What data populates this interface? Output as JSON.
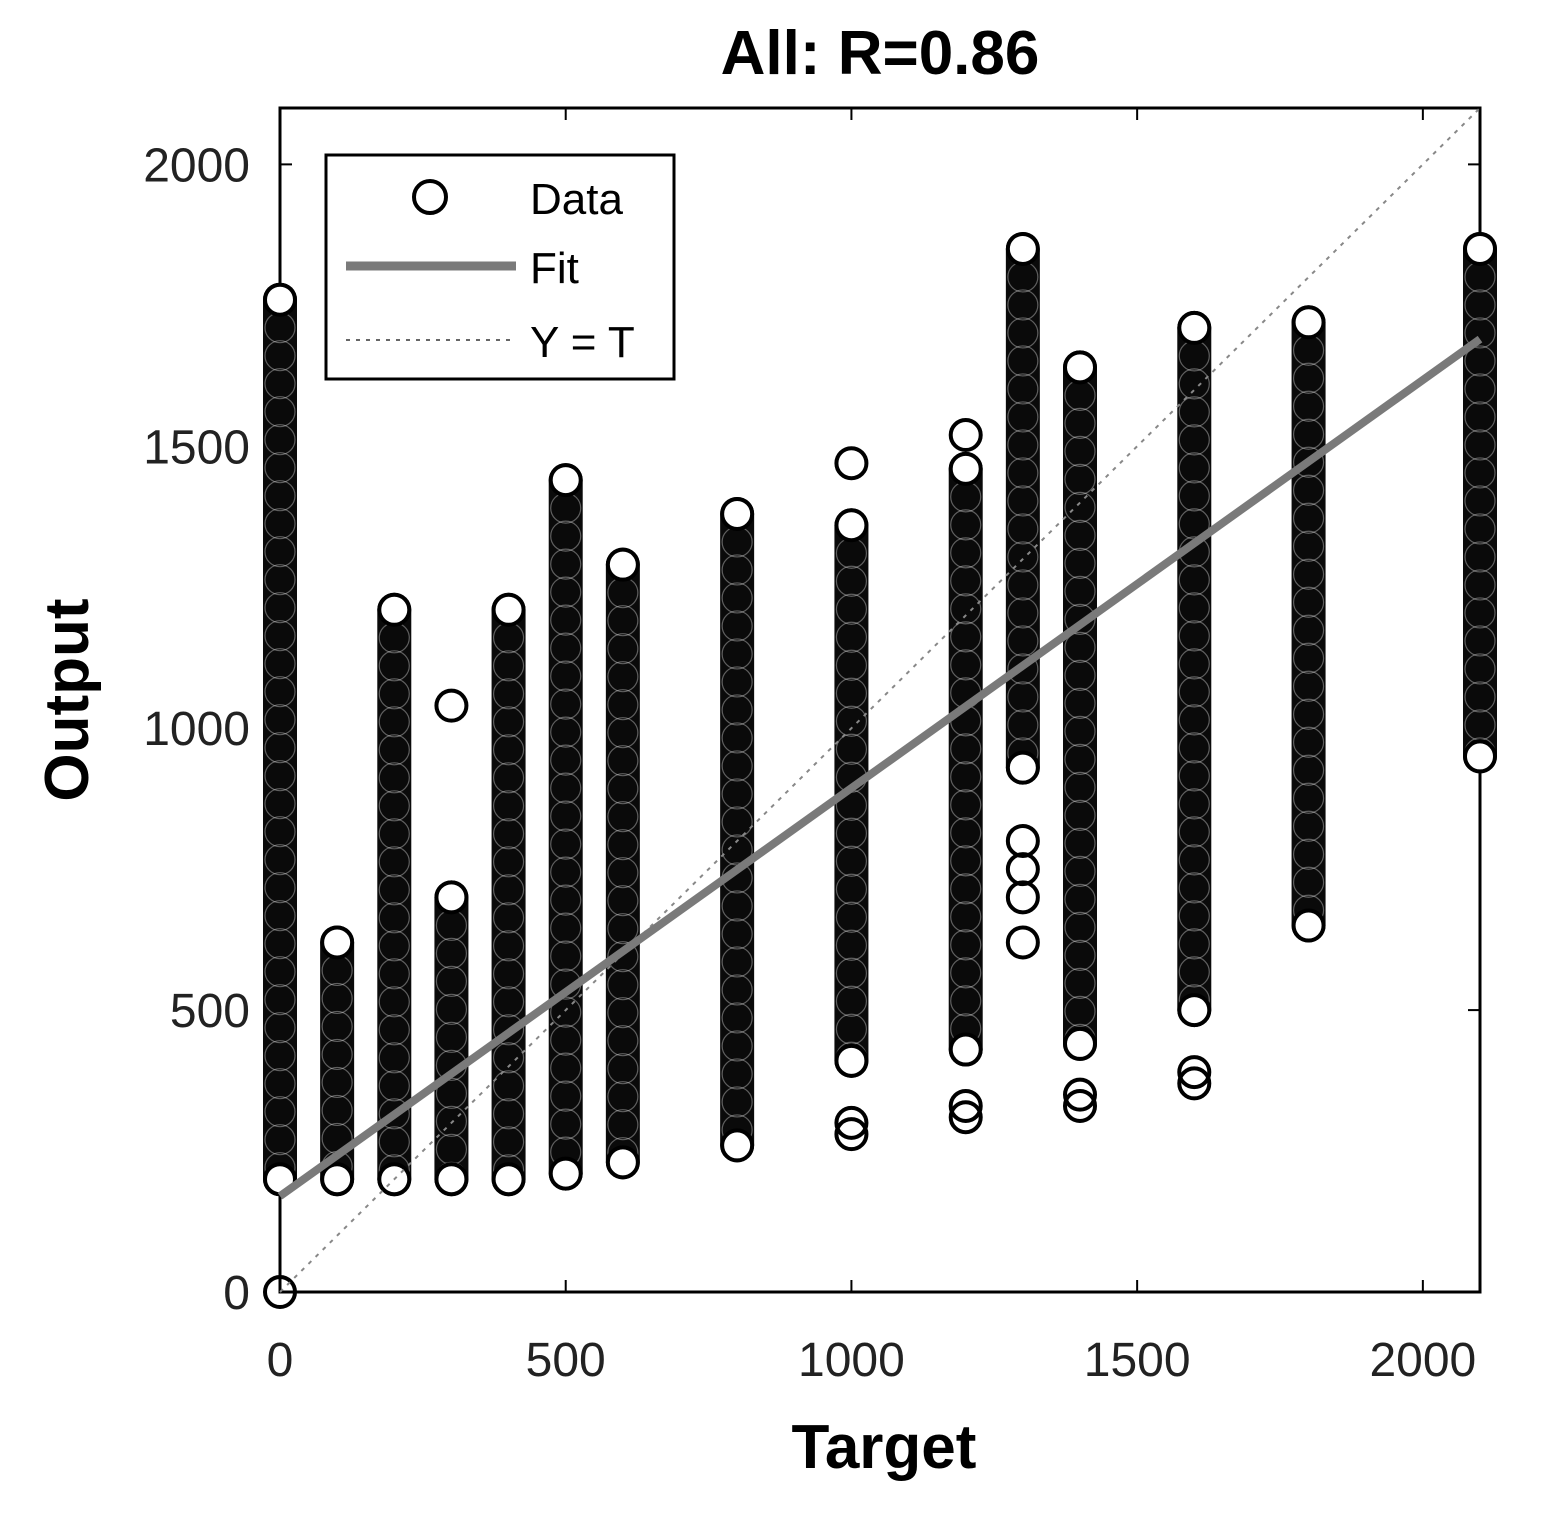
{
  "chart_data": {
    "type": "scatter",
    "title": "All: R=0.86",
    "xlabel": "Target",
    "ylabel": "Output",
    "xlim": [
      0,
      2100
    ],
    "ylim": [
      0,
      2100
    ],
    "xticks": [
      0,
      500,
      1000,
      1500,
      2000
    ],
    "yticks": [
      0,
      500,
      1000,
      1500,
      2000
    ],
    "grid": false,
    "legend_position": "top-left",
    "legend": [
      {
        "label": "Data",
        "style": "circle-marker"
      },
      {
        "label": "Fit",
        "style": "solid-line",
        "color": "#7a7a7a"
      },
      {
        "label": "Y = T",
        "style": "dotted-line",
        "color": "#7a7a7a"
      }
    ],
    "fit_line": {
      "x": [
        0,
        2100
      ],
      "y": [
        170,
        1690
      ]
    },
    "identity_line": {
      "x": [
        0,
        2100
      ],
      "y": [
        0,
        2100
      ]
    },
    "series": [
      {
        "name": "Data",
        "columns": [
          {
            "x": 0,
            "min": 200,
            "max": 1760
          },
          {
            "x": 100,
            "min": 200,
            "max": 620
          },
          {
            "x": 200,
            "min": 200,
            "max": 1210
          },
          {
            "x": 300,
            "min": 200,
            "max": 700
          },
          {
            "x": 400,
            "min": 200,
            "max": 1210
          },
          {
            "x": 500,
            "min": 210,
            "max": 1440
          },
          {
            "x": 600,
            "min": 230,
            "max": 1290
          },
          {
            "x": 800,
            "min": 260,
            "max": 1380
          },
          {
            "x": 1000,
            "min": 410,
            "max": 1360
          },
          {
            "x": 1200,
            "min": 430,
            "max": 1460
          },
          {
            "x": 1300,
            "min": 930,
            "max": 1850
          },
          {
            "x": 1400,
            "min": 440,
            "max": 1640
          },
          {
            "x": 1600,
            "min": 500,
            "max": 1710
          },
          {
            "x": 1800,
            "min": 650,
            "max": 1720
          },
          {
            "x": 2100,
            "min": 950,
            "max": 1850
          }
        ],
        "points": [
          [
            0,
            0
          ],
          [
            300,
            1040
          ],
          [
            1000,
            1470
          ],
          [
            1000,
            300
          ],
          [
            1000,
            280
          ],
          [
            1200,
            1520
          ],
          [
            1200,
            330
          ],
          [
            1200,
            310
          ],
          [
            1300,
            620
          ],
          [
            1300,
            700
          ],
          [
            1300,
            750
          ],
          [
            1300,
            800
          ],
          [
            1400,
            350
          ],
          [
            1400,
            330
          ],
          [
            1600,
            390
          ],
          [
            1600,
            370
          ]
        ]
      }
    ]
  }
}
